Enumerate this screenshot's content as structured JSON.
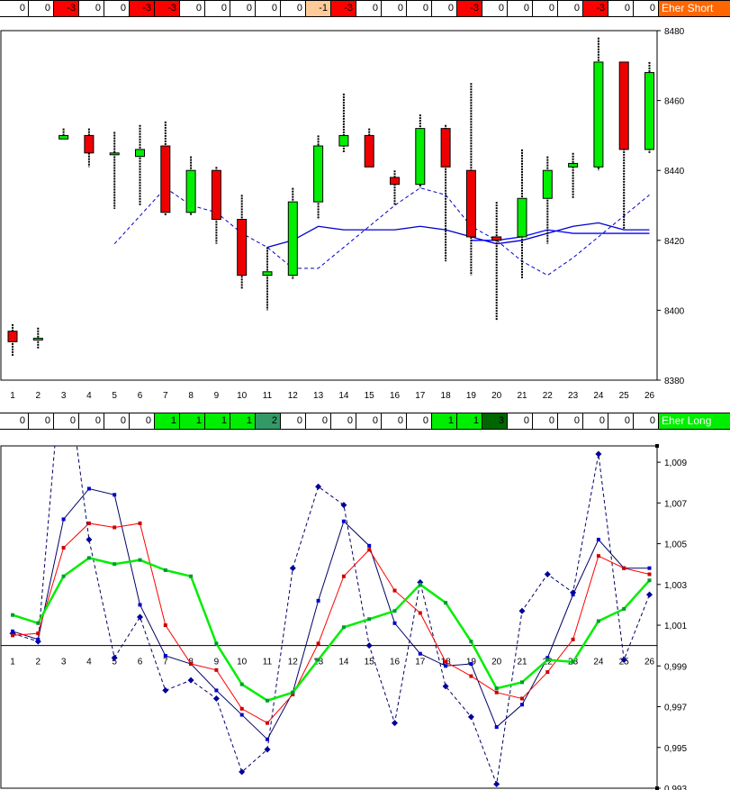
{
  "strips": {
    "short": {
      "label": "Eher Short",
      "label_color": "#ff6600",
      "cells": [
        {
          "v": "0",
          "c": "#ffffff"
        },
        {
          "v": "0",
          "c": "#ffffff"
        },
        {
          "v": "-3",
          "c": "#ff0000"
        },
        {
          "v": "0",
          "c": "#ffffff"
        },
        {
          "v": "0",
          "c": "#ffffff"
        },
        {
          "v": "-3",
          "c": "#ff0000"
        },
        {
          "v": "-3",
          "c": "#ff0000"
        },
        {
          "v": "0",
          "c": "#ffffff"
        },
        {
          "v": "0",
          "c": "#ffffff"
        },
        {
          "v": "0",
          "c": "#ffffff"
        },
        {
          "v": "0",
          "c": "#ffffff"
        },
        {
          "v": "0",
          "c": "#ffffff"
        },
        {
          "v": "-1",
          "c": "#ffcc99"
        },
        {
          "v": "-3",
          "c": "#ff0000"
        },
        {
          "v": "0",
          "c": "#ffffff"
        },
        {
          "v": "0",
          "c": "#ffffff"
        },
        {
          "v": "0",
          "c": "#ffffff"
        },
        {
          "v": "0",
          "c": "#ffffff"
        },
        {
          "v": "-3",
          "c": "#ff0000"
        },
        {
          "v": "0",
          "c": "#ffffff"
        },
        {
          "v": "0",
          "c": "#ffffff"
        },
        {
          "v": "0",
          "c": "#ffffff"
        },
        {
          "v": "0",
          "c": "#ffffff"
        },
        {
          "v": "-3",
          "c": "#ff0000"
        },
        {
          "v": "0",
          "c": "#ffffff"
        },
        {
          "v": "0",
          "c": "#ffffff"
        }
      ]
    },
    "long": {
      "label": "Eher Long",
      "label_color": "#00ee00",
      "cells": [
        {
          "v": "0",
          "c": "#ffffff"
        },
        {
          "v": "0",
          "c": "#ffffff"
        },
        {
          "v": "0",
          "c": "#ffffff"
        },
        {
          "v": "0",
          "c": "#ffffff"
        },
        {
          "v": "0",
          "c": "#ffffff"
        },
        {
          "v": "0",
          "c": "#ffffff"
        },
        {
          "v": "1",
          "c": "#00ee00"
        },
        {
          "v": "1",
          "c": "#00ee00"
        },
        {
          "v": "1",
          "c": "#00ee00"
        },
        {
          "v": "1",
          "c": "#00ee00"
        },
        {
          "v": "2",
          "c": "#339966"
        },
        {
          "v": "0",
          "c": "#ffffff"
        },
        {
          "v": "0",
          "c": "#ffffff"
        },
        {
          "v": "0",
          "c": "#ffffff"
        },
        {
          "v": "0",
          "c": "#ffffff"
        },
        {
          "v": "0",
          "c": "#ffffff"
        },
        {
          "v": "0",
          "c": "#ffffff"
        },
        {
          "v": "1",
          "c": "#00ee00"
        },
        {
          "v": "1",
          "c": "#00ee00"
        },
        {
          "v": "3",
          "c": "#006600"
        },
        {
          "v": "0",
          "c": "#ffffff"
        },
        {
          "v": "0",
          "c": "#ffffff"
        },
        {
          "v": "0",
          "c": "#ffffff"
        },
        {
          "v": "0",
          "c": "#ffffff"
        },
        {
          "v": "0",
          "c": "#ffffff"
        },
        {
          "v": "0",
          "c": "#ffffff"
        }
      ]
    }
  },
  "chart_data": [
    {
      "type": "candlestick",
      "x": [
        1,
        2,
        3,
        4,
        5,
        6,
        7,
        8,
        9,
        10,
        11,
        12,
        13,
        14,
        15,
        16,
        17,
        18,
        19,
        20,
        21,
        22,
        23,
        24,
        25,
        26
      ],
      "ylim": [
        8380,
        8480
      ],
      "yticks": [
        8380,
        8400,
        8420,
        8440,
        8460,
        8480
      ],
      "xticks": [
        "1",
        "2",
        "3",
        "4",
        "5",
        "6",
        "7",
        "8",
        "9",
        "10",
        "11",
        "12",
        "13",
        "14",
        "15",
        "16",
        "17",
        "18",
        "19",
        "20",
        "21",
        "22",
        "23",
        "24",
        "25",
        "26"
      ],
      "up_color": "#00ee00",
      "down_color": "#ee0000",
      "candles": [
        {
          "o": 8394,
          "h": 8396,
          "l": 8387,
          "c": 8391
        },
        {
          "o": 8392,
          "h": 8395,
          "l": 8389,
          "c": 8392
        },
        {
          "o": 8449,
          "h": 8452,
          "l": 8449,
          "c": 8450
        },
        {
          "o": 8450,
          "h": 8452,
          "l": 8441,
          "c": 8445
        },
        {
          "o": 8445,
          "h": 8451,
          "l": 8429,
          "c": 8445
        },
        {
          "o": 8444,
          "h": 8453,
          "l": 8430,
          "c": 8446
        },
        {
          "o": 8447,
          "h": 8454,
          "l": 8427,
          "c": 8428
        },
        {
          "o": 8428,
          "h": 8444,
          "l": 8427,
          "c": 8440
        },
        {
          "o": 8440,
          "h": 8441,
          "l": 8419,
          "c": 8426
        },
        {
          "o": 8426,
          "h": 8433,
          "l": 8406,
          "c": 8410
        },
        {
          "o": 8410,
          "h": 8418,
          "l": 8400,
          "c": 8411
        },
        {
          "o": 8410,
          "h": 8435,
          "l": 8409,
          "c": 8431
        },
        {
          "o": 8431,
          "h": 8450,
          "l": 8426,
          "c": 8447
        },
        {
          "o": 8447,
          "h": 8462,
          "l": 8445,
          "c": 8450
        },
        {
          "o": 8450,
          "h": 8452,
          "l": 8441,
          "c": 8441
        },
        {
          "o": 8438,
          "h": 8440,
          "l": 8430,
          "c": 8436
        },
        {
          "o": 8436,
          "h": 8456,
          "l": 8435,
          "c": 8452
        },
        {
          "o": 8452,
          "h": 8453,
          "l": 8414,
          "c": 8441
        },
        {
          "o": 8440,
          "h": 8465,
          "l": 8410,
          "c": 8421
        },
        {
          "o": 8421,
          "h": 8431,
          "l": 8397,
          "c": 8420
        },
        {
          "o": 8421,
          "h": 8446,
          "l": 8409,
          "c": 8432
        },
        {
          "o": 8432,
          "h": 8444,
          "l": 8419,
          "c": 8440
        },
        {
          "o": 8441,
          "h": 8445,
          "l": 8432,
          "c": 8442
        },
        {
          "o": 8441,
          "h": 8478,
          "l": 8440,
          "c": 8471
        },
        {
          "o": 8471,
          "h": 8471,
          "l": 8423,
          "c": 8446
        },
        {
          "o": 8446,
          "h": 8471,
          "l": 8445,
          "c": 8468
        }
      ],
      "overlays": [
        {
          "style": "dashed",
          "color": "#0000cc",
          "values": [
            null,
            null,
            null,
            null,
            8419,
            8427,
            8435,
            8430,
            8428,
            8422,
            8418,
            8412,
            8412,
            8418,
            8424,
            8430,
            8435,
            8433,
            8424,
            8420,
            8414,
            8410,
            8415,
            8421,
            8427,
            8433
          ]
        },
        {
          "style": "solid",
          "color": "#0000cc",
          "values": [
            null,
            null,
            null,
            null,
            null,
            null,
            null,
            null,
            null,
            null,
            8418,
            8420,
            8424,
            8423,
            8423,
            8423,
            8424,
            8423,
            8421,
            8419,
            8420,
            8422,
            8424,
            8425,
            8423,
            8423
          ]
        },
        {
          "style": "solid",
          "color": "#0000ff",
          "values": [
            null,
            null,
            null,
            null,
            null,
            null,
            null,
            null,
            null,
            null,
            null,
            null,
            null,
            null,
            null,
            null,
            null,
            null,
            8420,
            8420,
            8421,
            8423,
            8422,
            8422,
            8422,
            8422
          ]
        }
      ]
    },
    {
      "type": "line",
      "x": [
        1,
        2,
        3,
        4,
        5,
        6,
        7,
        8,
        9,
        10,
        11,
        12,
        13,
        14,
        15,
        16,
        17,
        18,
        19,
        20,
        21,
        22,
        23,
        24,
        25,
        26
      ],
      "ylim": [
        0.993,
        1.0098
      ],
      "yticks": [
        0.993,
        0.995,
        0.997,
        0.999,
        1.001,
        1.003,
        1.005,
        1.007,
        1.009
      ],
      "ytick_labels": [
        "0,993",
        "0,995",
        "0,997",
        "0,999",
        "1,001",
        "1,003",
        "1,005",
        "1,007",
        "1,009"
      ],
      "xticks": [
        "1",
        "2",
        "3",
        "4",
        "5",
        "6",
        "7",
        "8",
        "9",
        "10",
        "11",
        "12",
        "13",
        "14",
        "15",
        "16",
        "17",
        "18",
        "19",
        "20",
        "21",
        "22",
        "23",
        "24",
        "25",
        "26"
      ],
      "baseline": 1.0,
      "series": [
        {
          "style": "dashed",
          "color": "#000066",
          "marker": "#000099",
          "marker_shape": "diamond",
          "values": [
            1.0006,
            1.0002,
            1.0148,
            1.0052,
            0.9994,
            1.0014,
            0.9978,
            0.9983,
            0.9974,
            0.9938,
            0.9949,
            1.0038,
            1.0078,
            1.0069,
            1.0,
            0.9962,
            1.0031,
            0.998,
            0.9965,
            0.9932,
            1.0017,
            1.0035,
            1.0026,
            1.0094,
            0.9993,
            1.0025
          ]
        },
        {
          "style": "solid",
          "color": "#000066",
          "marker": "#0000cc",
          "marker_shape": "square",
          "values": [
            1.0007,
            1.0003,
            1.0062,
            1.0077,
            1.0074,
            1.002,
            0.9995,
            0.9991,
            0.9978,
            0.9966,
            0.9954,
            0.9977,
            1.0022,
            1.0061,
            1.0049,
            1.0011,
            0.9996,
            0.999,
            0.9991,
            0.996,
            0.9971,
            0.9994,
            1.0025,
            1.0052,
            1.0038,
            1.0038
          ]
        },
        {
          "style": "solid",
          "color": "#ff0000",
          "marker": "#cc0000",
          "marker_shape": "square",
          "values": [
            1.0005,
            1.0006,
            1.0048,
            1.006,
            1.0058,
            1.006,
            1.001,
            0.9991,
            0.9988,
            0.9969,
            0.9962,
            0.9976,
            1.0001,
            1.0034,
            1.0047,
            1.0027,
            1.0016,
            0.9992,
            0.9985,
            0.9977,
            0.9974,
            0.9987,
            1.0003,
            1.0044,
            1.0038,
            1.0035
          ]
        },
        {
          "style": "solid",
          "color": "#00ee00",
          "marker": "#009933",
          "marker_shape": "square",
          "width": 2.5,
          "values": [
            1.0015,
            1.0011,
            1.0034,
            1.0043,
            1.004,
            1.0042,
            1.0037,
            1.0034,
            1.0001,
            0.9981,
            0.9973,
            0.9977,
            0.9993,
            1.0009,
            1.0013,
            1.0017,
            1.003,
            1.0021,
            1.0002,
            0.9979,
            0.9982,
            0.9993,
            0.9992,
            1.0012,
            1.0018,
            1.0032
          ]
        }
      ]
    }
  ]
}
